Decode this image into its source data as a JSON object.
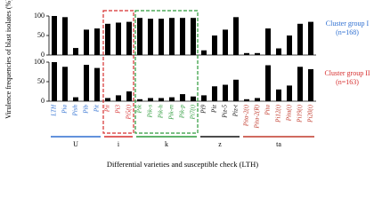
{
  "chart_data": {
    "type": "bar",
    "y_label": "Virulence frequencies of blast isolates (%)",
    "x_label": "Differential varieties and susceptible check (LTH)",
    "ylim": [
      0,
      100
    ],
    "yticks": [
      0,
      50,
      100
    ],
    "groups": [
      {
        "label": "U",
        "color": "#2e6fd1",
        "highlighted": false,
        "categories": [
          "LTH",
          "Pia",
          "Pish",
          "Pib",
          "Pit"
        ]
      },
      {
        "label": "i",
        "color": "#d62f2f",
        "highlighted": true,
        "categories": [
          "Pii",
          "Pi3",
          "Pi5(t)"
        ]
      },
      {
        "label": "k",
        "color": "#2c9a3a",
        "highlighted": true,
        "categories": [
          "Pik",
          "Pik-s",
          "Pik-h",
          "Pik-m",
          "Pik-p",
          "Pi7(t)"
        ]
      },
      {
        "label": "z",
        "color": "#111111",
        "highlighted": false,
        "categories": [
          "Pi9",
          "Piz",
          "Piz-5",
          "Piz-t"
        ]
      },
      {
        "label": "ta",
        "color": "#c0392b",
        "highlighted": false,
        "categories": [
          "Pita-2(t)",
          "Pita-2(R)",
          "Pita",
          "Pi12(t)",
          "Pita(t)",
          "Pi19(t)",
          "Pi20(t)"
        ]
      }
    ],
    "series": [
      {
        "name": "Cluster group I (n=168)",
        "color": "#2e6fd1",
        "bar_color": "#000000",
        "values": [
          100,
          97,
          18,
          65,
          68,
          80,
          83,
          85,
          95,
          93,
          93,
          95,
          95,
          95,
          12,
          50,
          65,
          97,
          5,
          5,
          68,
          17,
          50,
          80,
          85
        ]
      },
      {
        "name": "Cluster group II (n=163)",
        "color": "#d62f2f",
        "bar_color": "#000000",
        "values": [
          100,
          88,
          10,
          93,
          85,
          8,
          15,
          25,
          5,
          8,
          8,
          10,
          18,
          12,
          15,
          38,
          42,
          55,
          5,
          8,
          92,
          30,
          40,
          88,
          82
        ]
      }
    ]
  }
}
